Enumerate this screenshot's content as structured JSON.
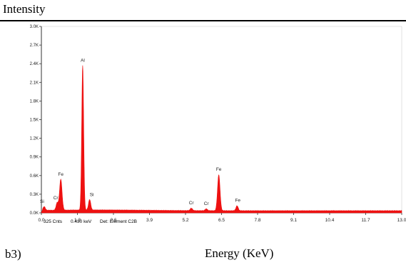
{
  "figure": {
    "ylabel": "Intensity",
    "xlabel": "Energy (KeV)",
    "panel_label": "b3)"
  },
  "footer": {
    "counts": "325 Cnts",
    "cursor_energy": "0.430 keV",
    "detector": "Det: Element C2B"
  },
  "colors": {
    "spectrum": "#ee1111",
    "axis": "#333333",
    "text": "#222222"
  },
  "chart_data": {
    "type": "area",
    "xlim": [
      0.0,
      13.0
    ],
    "ylim": [
      0,
      3.0
    ],
    "y_unit": "K counts",
    "grid": false,
    "xticks": [
      "0.0",
      "1.3",
      "2.6",
      "3.9",
      "5.2",
      "6.5",
      "7.8",
      "9.1",
      "10.4",
      "11.7",
      "13.0"
    ],
    "yticks": [
      "0.0K",
      "0.3K",
      "0.6K",
      "0.9K",
      "1.2K",
      "1.5K",
      "1.8K",
      "2.1K",
      "2.4K",
      "2.7K",
      "3.0K"
    ],
    "baseline": 0.03,
    "peaks": [
      {
        "label": "Si",
        "energy": 0.1,
        "height": 0.06
      },
      {
        "label": "Cr",
        "energy": 0.57,
        "height": 0.12
      },
      {
        "label": "Fe",
        "energy": 0.7,
        "height": 0.5
      },
      {
        "label": "Al",
        "energy": 1.49,
        "height": 2.33
      },
      {
        "label": "Si",
        "energy": 1.74,
        "height": 0.17
      },
      {
        "label": "Cr",
        "energy": 5.41,
        "height": 0.04
      },
      {
        "label": "Cr",
        "energy": 5.95,
        "height": 0.03
      },
      {
        "label": "Fe",
        "energy": 6.4,
        "height": 0.58
      },
      {
        "label": "Fe",
        "energy": 7.06,
        "height": 0.08
      }
    ]
  }
}
